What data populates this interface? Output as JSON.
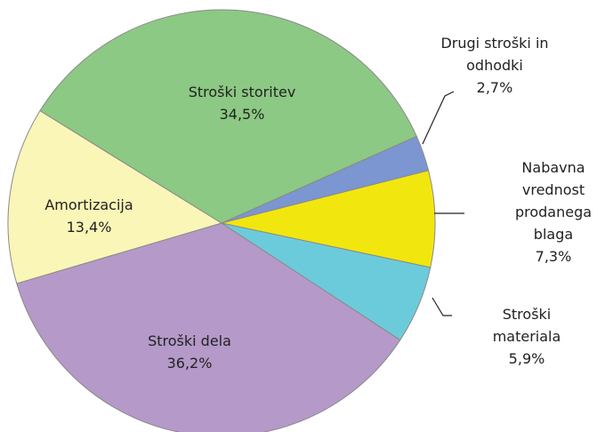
{
  "chart_data": {
    "type": "pie",
    "categories": [
      "Drugi stroški in\nodhodki",
      "Nabavna\nvrednost\nprodanega blaga",
      "Stroški materiala",
      "Stroški dela",
      "Amortizacija",
      "Stroški storitev"
    ],
    "values": [
      2.7,
      7.3,
      5.9,
      36.2,
      13.4,
      34.5
    ],
    "value_labels": [
      "2,7%",
      "7,3%",
      "5,9%",
      "36,2%",
      "13,4%",
      "34,5%"
    ],
    "colors": [
      "#7b96d0",
      "#f2e60f",
      "#6ccbdb",
      "#b599c8",
      "#faf6b8",
      "#8cc984"
    ]
  }
}
